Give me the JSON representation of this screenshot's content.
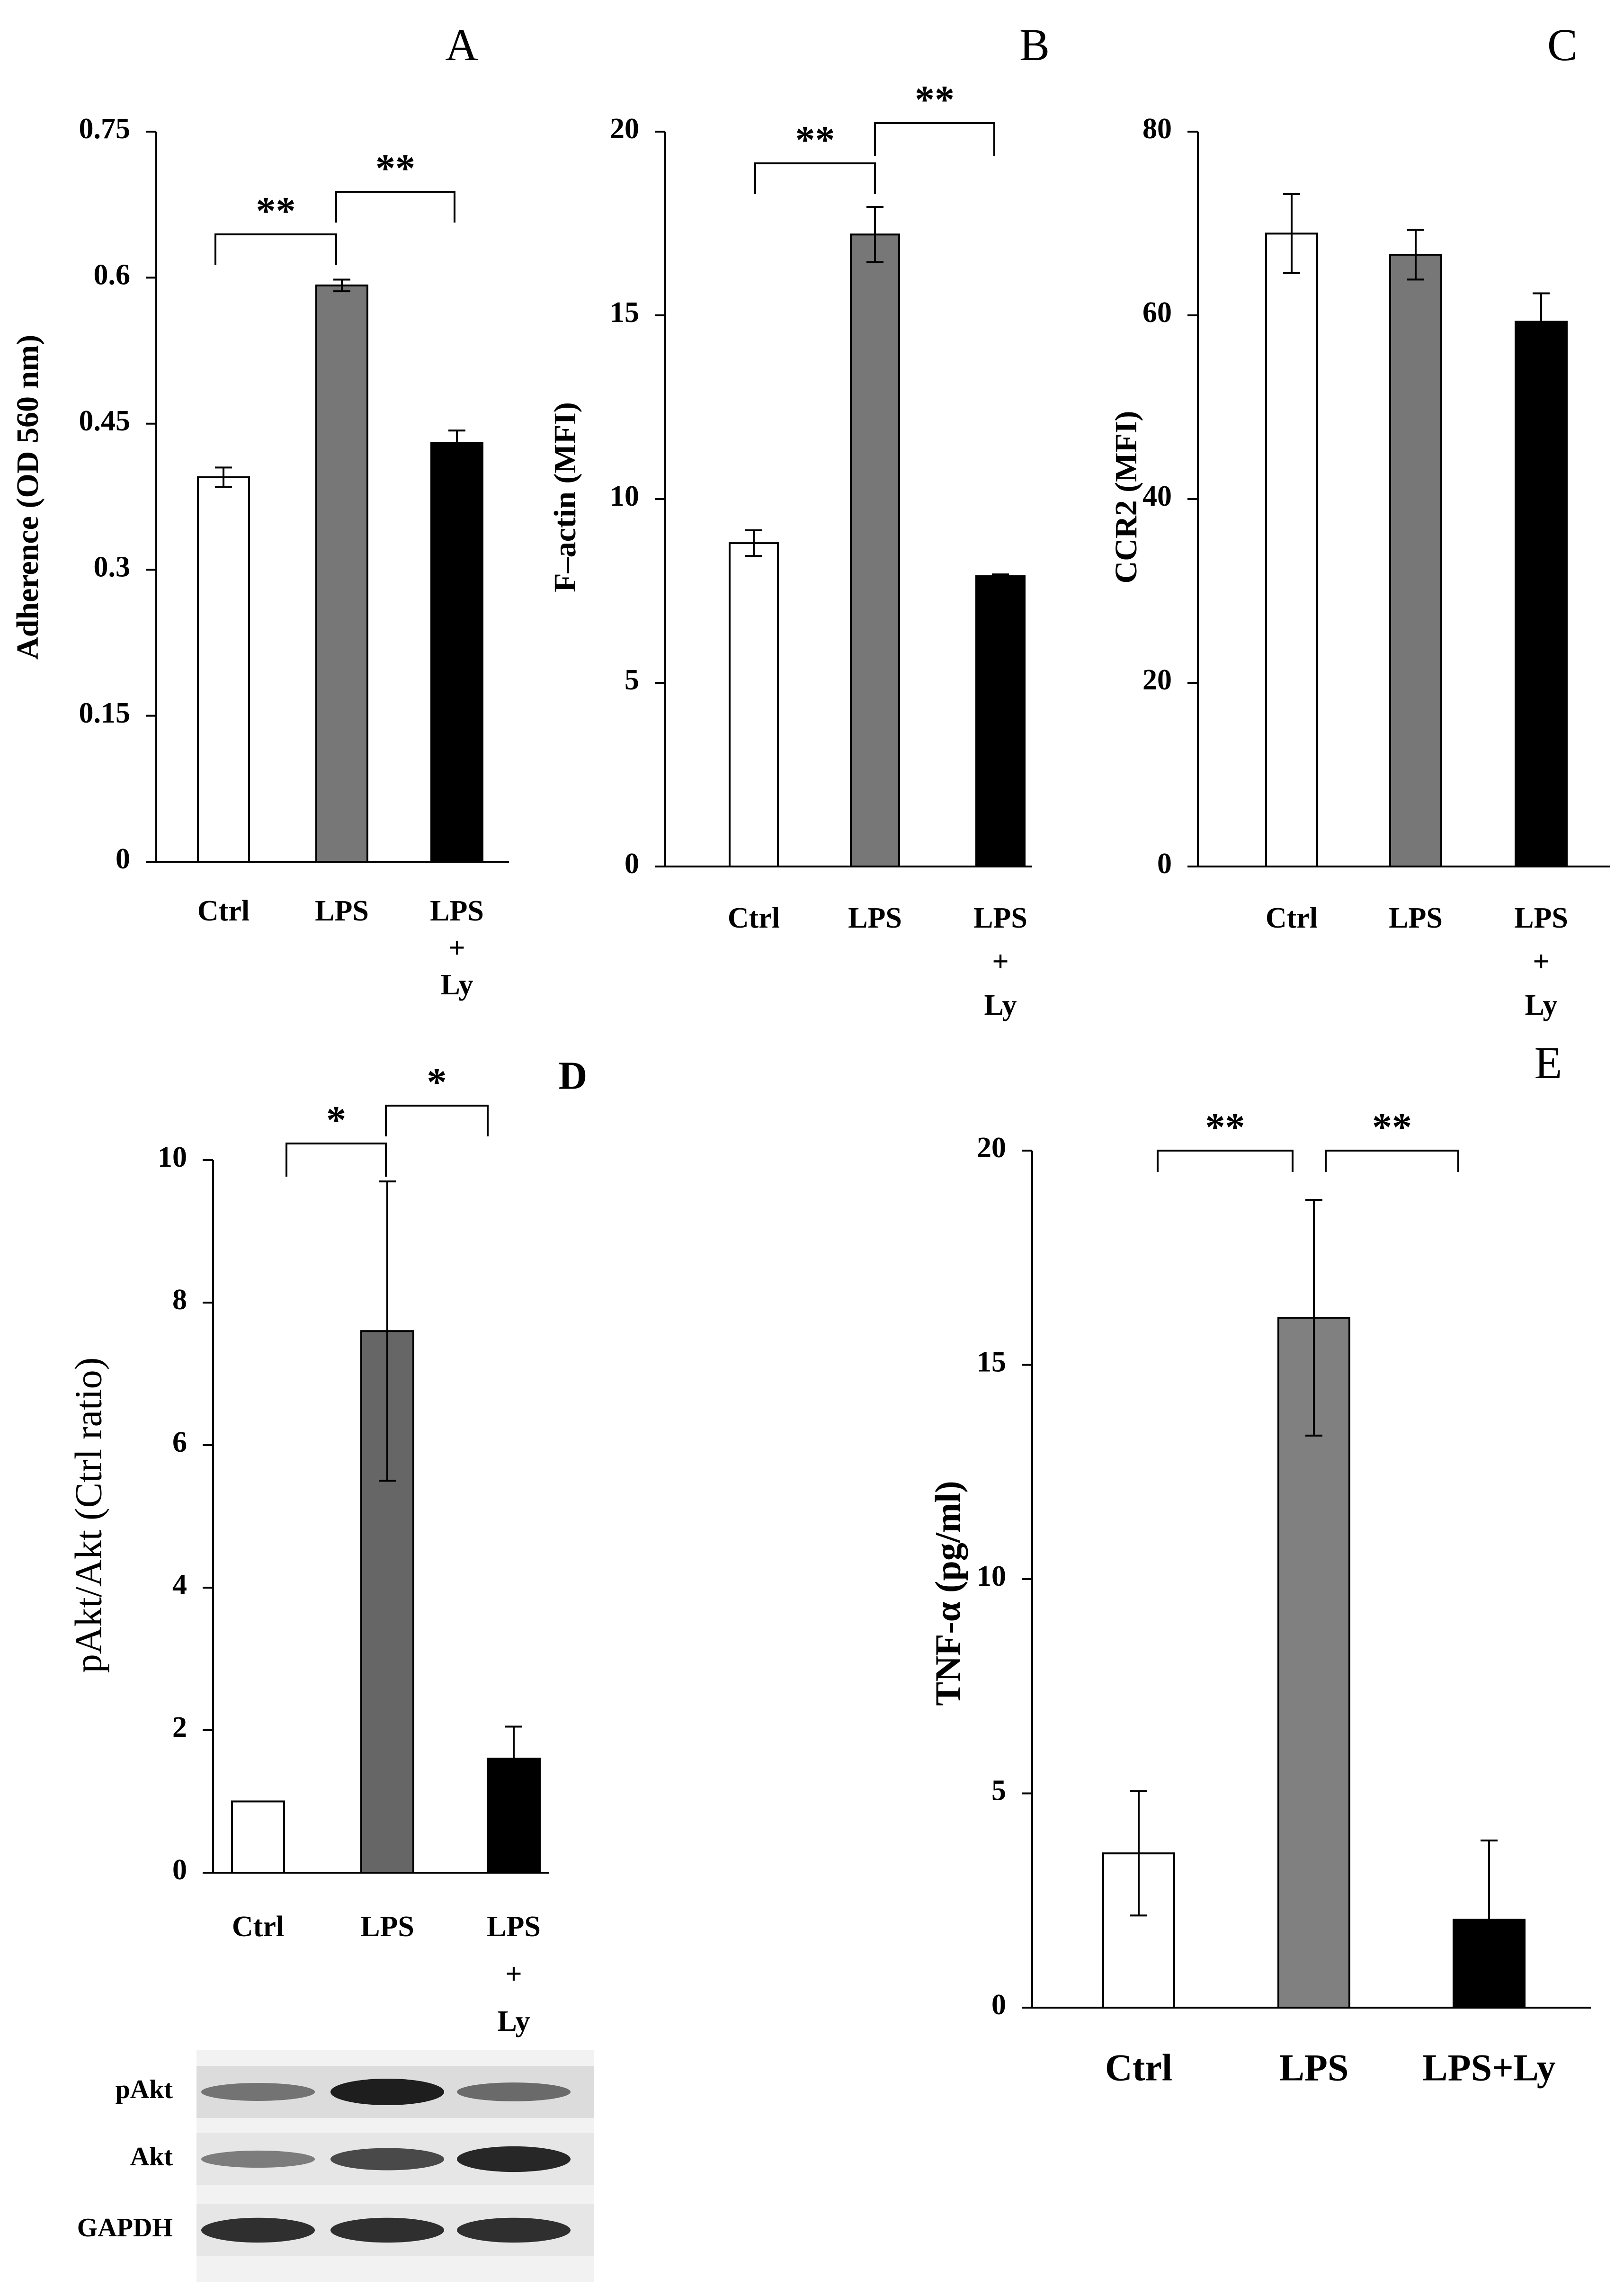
{
  "chart_data": [
    {
      "panel": "A",
      "type": "bar",
      "categories": [
        [
          "Ctrl"
        ],
        [
          "LPS"
        ],
        [
          "LPS",
          "+",
          "Ly"
        ]
      ],
      "values": [
        0.395,
        0.592,
        0.43
      ],
      "errors": [
        0.01,
        0.006,
        0.013
      ],
      "colors": [
        "#ffffff",
        "#777777",
        "#000000"
      ],
      "ylabel": "Adherence (OD 560 nm)",
      "ylim": [
        0,
        0.75
      ],
      "yticks": [
        "0",
        "0.15",
        "0.3",
        "0.45",
        "0.6",
        "0.75"
      ],
      "significance": [
        {
          "from": 0,
          "to": 1,
          "label": "**"
        },
        {
          "from": 1,
          "to": 2,
          "label": "**"
        }
      ]
    },
    {
      "panel": "B",
      "type": "bar",
      "categories": [
        [
          "Ctrl"
        ],
        [
          "LPS"
        ],
        [
          "LPS",
          "+",
          "Ly"
        ]
      ],
      "values": [
        8.8,
        17.2,
        7.9
      ],
      "errors": [
        0.35,
        0.75,
        0.05
      ],
      "colors": [
        "#ffffff",
        "#777777",
        "#000000"
      ],
      "ylabel": "F–actin (MFI)",
      "ylim": [
        0,
        20
      ],
      "yticks": [
        "0",
        "5",
        "10",
        "15",
        "20"
      ],
      "significance": [
        {
          "from": 0,
          "to": 1,
          "label": "**"
        },
        {
          "from": 1,
          "to": 2,
          "label": "**"
        }
      ]
    },
    {
      "panel": "C",
      "type": "bar",
      "categories": [
        [
          "Ctrl"
        ],
        [
          "LPS"
        ],
        [
          "LPS",
          "+",
          "Ly"
        ]
      ],
      "values": [
        68.9,
        66.6,
        59.3
      ],
      "errors": [
        4.3,
        2.7,
        3.1
      ],
      "colors": [
        "#ffffff",
        "#777777",
        "#000000"
      ],
      "ylabel": "CCR2 (MFI)",
      "ylim": [
        0,
        80
      ],
      "yticks": [
        "0",
        "20",
        "40",
        "60",
        "80"
      ],
      "significance": []
    },
    {
      "panel": "D",
      "type": "bar",
      "categories": [
        [
          "Ctrl"
        ],
        [
          "LPS"
        ],
        [
          "LPS",
          "+",
          "Ly"
        ]
      ],
      "values": [
        1.0,
        7.6,
        1.6
      ],
      "errors": [
        0,
        2.1,
        0.45
      ],
      "colors": [
        "#ffffff",
        "#666666",
        "#000000"
      ],
      "ylabel": "pAkt/Akt (Ctrl ratio)",
      "ylim": [
        0,
        10
      ],
      "yticks": [
        "0",
        "2",
        "4",
        "6",
        "8",
        "10"
      ],
      "significance": [
        {
          "from": 0,
          "to": 1,
          "label": "*"
        },
        {
          "from": 1,
          "to": 2,
          "label": "*"
        }
      ],
      "blot_labels": [
        "pAkt",
        "Akt",
        "GAPDH"
      ]
    },
    {
      "panel": "E",
      "type": "bar",
      "categories": [
        [
          "Ctrl"
        ],
        [
          "LPS"
        ],
        [
          "LPS+Ly"
        ]
      ],
      "values": [
        3.6,
        16.1,
        2.05
      ],
      "errors": [
        1.45,
        2.75,
        1.85
      ],
      "colors": [
        "#ffffff",
        "#808080",
        "#000000"
      ],
      "ylabel": "TNF-α (pg/ml)",
      "ylim": [
        0,
        20
      ],
      "yticks": [
        "0",
        "5",
        "10",
        "15",
        "20"
      ],
      "significance": [
        {
          "from": 0,
          "to": 1,
          "label": "**"
        },
        {
          "from": 1,
          "to": 2,
          "label": "**"
        }
      ]
    }
  ]
}
